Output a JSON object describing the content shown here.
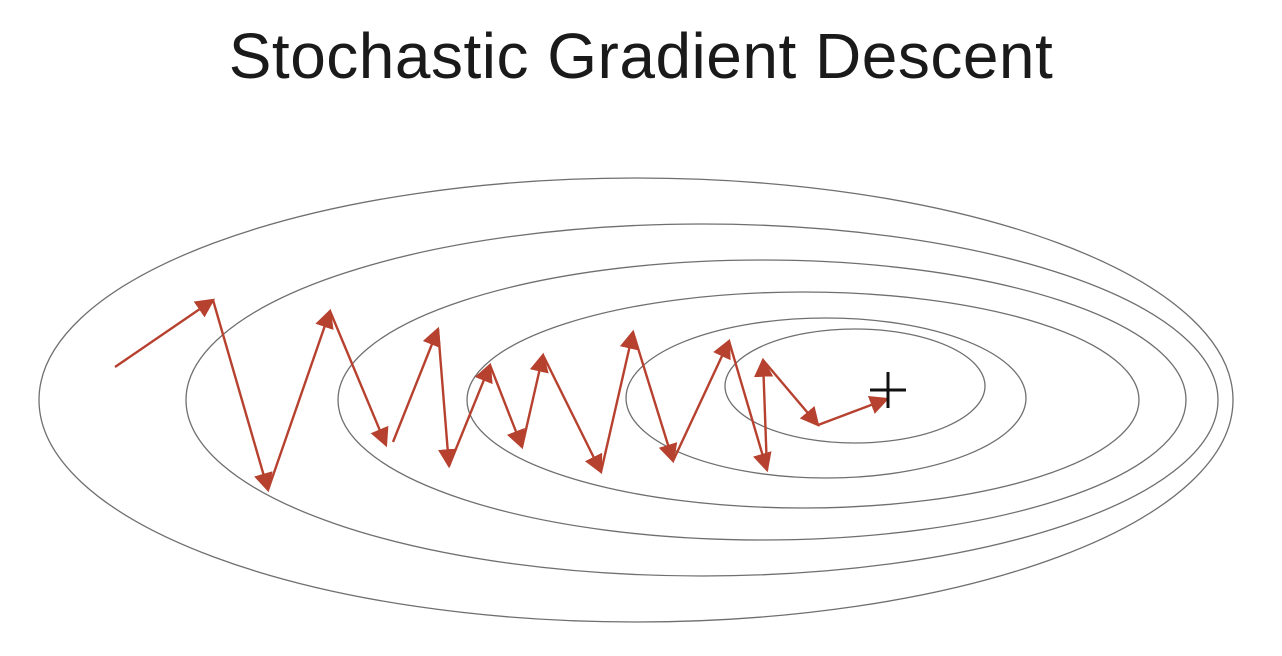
{
  "title": "Stochastic Gradient Descent",
  "colors": {
    "contour": "#6f6f6f",
    "path": "#b7412f",
    "optimum_marker": "#111111",
    "background": "#ffffff"
  },
  "icons": {
    "optimum_marker": "plus-icon"
  }
}
